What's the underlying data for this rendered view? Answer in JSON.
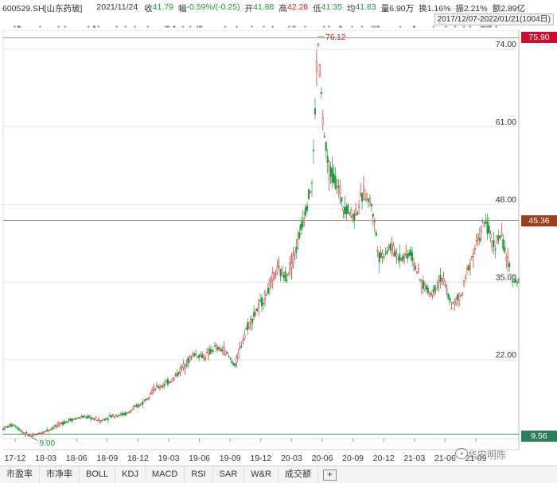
{
  "header": {
    "code": "600529.SH[山东药玻]",
    "date": "2021/11/24",
    "close_label": "收",
    "close_value": "41.79",
    "change_label": "幅",
    "change_value": "-0.59%/(-0.25)",
    "open_label": "开",
    "open_value": "41.88",
    "high_label": "高",
    "high_value": "42.28",
    "low_label": "低",
    "low_value": "41.35",
    "avg_label": "均",
    "avg_value": "41.83",
    "volume": "量6.90万",
    "turnover": "换1.16%",
    "amplitude": "振2.21%",
    "amount": "额2.89亿",
    "date_range": "2017/12/07-2022/01/21(1004日)"
  },
  "colors": {
    "up": "#d02020",
    "down": "#1a9a3a",
    "label_red": "#c8102e",
    "label_brown": "#a0401a",
    "label_green": "#2e7d5e",
    "ref_line": "#8a7a5a"
  },
  "price_axis": {
    "ticks": [
      "74.00",
      "61.00",
      "48.00",
      "35.00",
      "22.00"
    ]
  },
  "right_labels": {
    "top": "75.90",
    "mid": "45.36",
    "bottom": "9.56"
  },
  "annotations": {
    "max_label": "76.12",
    "min_label": "9.00"
  },
  "x_axis": {
    "labels": [
      "17-12",
      "18-03",
      "18-06",
      "18-09",
      "18-12",
      "19-03",
      "19-06",
      "19-09",
      "19-12",
      "20-03",
      "20-06",
      "20-09",
      "20-12",
      "21-03",
      "21-06",
      "21-09"
    ]
  },
  "tabs": [
    "市盈率",
    "市净率",
    "BOLL",
    "KDJ",
    "MACD",
    "RSI",
    "SAR",
    "W&R",
    "成交额"
  ],
  "tab_plus": "+",
  "watermark": "华安明陈",
  "chart_data": {
    "type": "candlestick",
    "ylim": [
      9.0,
      76.12
    ],
    "y_ticks": [
      74,
      61,
      48,
      35,
      22
    ],
    "price_path": [
      [
        0,
        10.5
      ],
      [
        0.02,
        11.2
      ],
      [
        0.04,
        9.8
      ],
      [
        0.055,
        9.2
      ],
      [
        0.08,
        10.0
      ],
      [
        0.1,
        10.8
      ],
      [
        0.13,
        12.0
      ],
      [
        0.16,
        12.5
      ],
      [
        0.19,
        11.8
      ],
      [
        0.21,
        12.6
      ],
      [
        0.24,
        13.0
      ],
      [
        0.27,
        14.8
      ],
      [
        0.29,
        17.0
      ],
      [
        0.31,
        17.8
      ],
      [
        0.33,
        18.8
      ],
      [
        0.35,
        21.0
      ],
      [
        0.37,
        23.0
      ],
      [
        0.39,
        22.5
      ],
      [
        0.41,
        24.0
      ],
      [
        0.43,
        23.5
      ],
      [
        0.45,
        21.0
      ],
      [
        0.47,
        27.0
      ],
      [
        0.49,
        30.0
      ],
      [
        0.51,
        33.0
      ],
      [
        0.53,
        37.0
      ],
      [
        0.55,
        36.0
      ],
      [
        0.57,
        41.0
      ],
      [
        0.58,
        45.0
      ],
      [
        0.6,
        52.0
      ],
      [
        0.61,
        76.12
      ],
      [
        0.62,
        62.0
      ],
      [
        0.63,
        54.0
      ],
      [
        0.645,
        52.0
      ],
      [
        0.66,
        48.0
      ],
      [
        0.68,
        46.0
      ],
      [
        0.7,
        50.0
      ],
      [
        0.715,
        48.0
      ],
      [
        0.73,
        39.0
      ],
      [
        0.75,
        41.0
      ],
      [
        0.77,
        39.0
      ],
      [
        0.79,
        40.0
      ],
      [
        0.81,
        35.0
      ],
      [
        0.83,
        33.0
      ],
      [
        0.85,
        36.0
      ],
      [
        0.87,
        31.0
      ],
      [
        0.89,
        33.0
      ],
      [
        0.9,
        37.0
      ],
      [
        0.92,
        42.0
      ],
      [
        0.935,
        45.36
      ],
      [
        0.95,
        41.0
      ],
      [
        0.965,
        43.0
      ],
      [
        0.985,
        36.0
      ],
      [
        1.0,
        35.0
      ]
    ]
  }
}
